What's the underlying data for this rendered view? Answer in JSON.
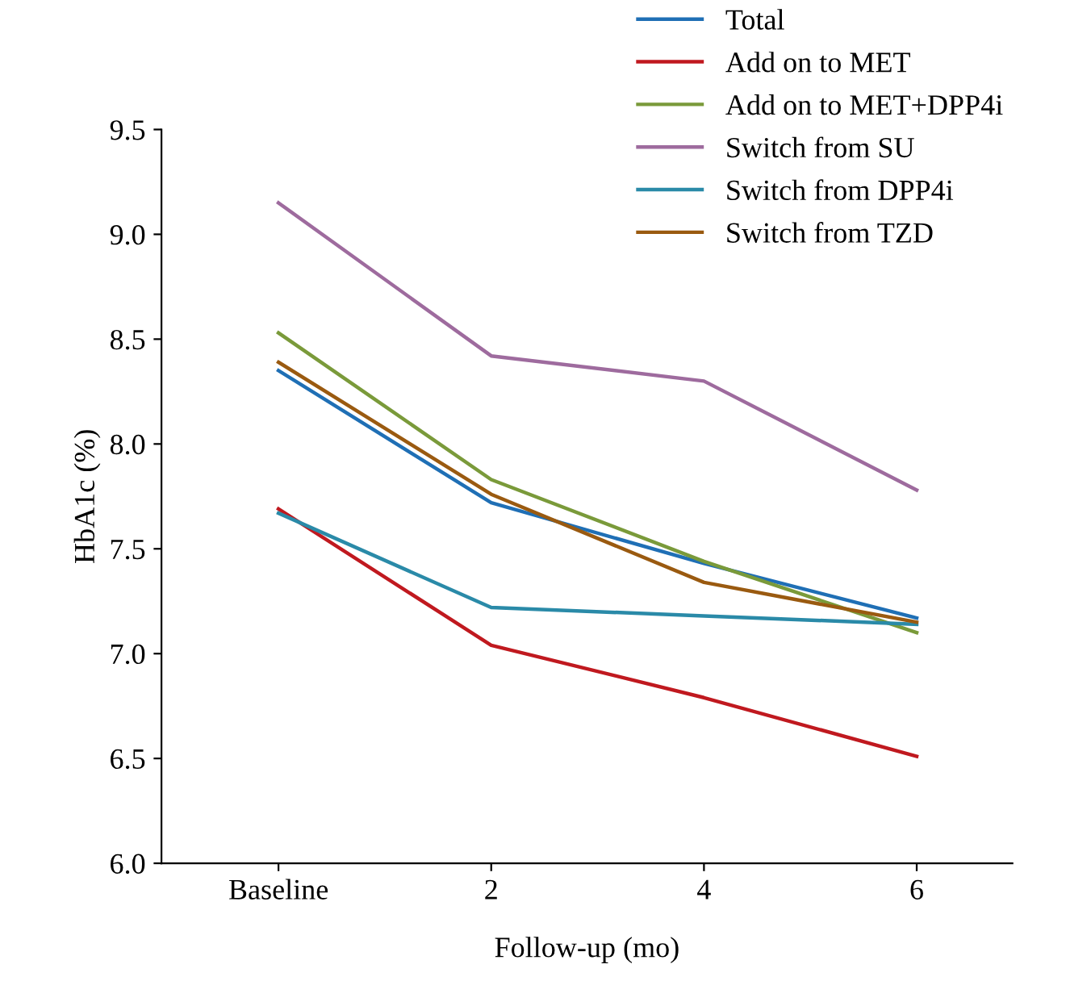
{
  "chart_data": {
    "type": "line",
    "xlabel": "Follow-up (mo)",
    "ylabel": "HbA1c (%)",
    "categories": [
      "Baseline",
      "2",
      "4",
      "6"
    ],
    "ylim": [
      6.0,
      9.5
    ],
    "yticks": [
      {
        "value": 6.0,
        "label": "6.0"
      },
      {
        "value": 6.5,
        "label": "6.5"
      },
      {
        "value": 7.0,
        "label": "7.0"
      },
      {
        "value": 7.5,
        "label": "7.5"
      },
      {
        "value": 8.0,
        "label": "8.0"
      },
      {
        "value": 8.5,
        "label": "8.5"
      },
      {
        "value": 9.0,
        "label": "9.0"
      },
      {
        "value": 9.5,
        "label": "9.5"
      }
    ],
    "grid": false,
    "legend": "top right",
    "marker": "none",
    "line_style": "solid",
    "series": [
      {
        "name": "Total",
        "color": "#1f6fb5",
        "values": [
          8.35,
          7.72,
          7.43,
          7.17
        ]
      },
      {
        "name": "Add on to MET",
        "color": "#c0191f",
        "values": [
          7.69,
          7.04,
          6.79,
          6.51
        ]
      },
      {
        "name": "Add on to MET+DPP4i",
        "color": "#7a9a3a",
        "values": [
          8.53,
          7.83,
          7.44,
          7.1
        ]
      },
      {
        "name": "Switch from SU",
        "color": "#9e6b9e",
        "values": [
          9.15,
          8.42,
          8.3,
          7.78
        ]
      },
      {
        "name": "Switch from DPP4i",
        "color": "#2a8aa8",
        "values": [
          7.67,
          7.22,
          7.18,
          7.14
        ]
      },
      {
        "name": "Switch from TZD",
        "color": "#9a5a10",
        "values": [
          8.39,
          7.76,
          7.34,
          7.15
        ]
      }
    ]
  }
}
